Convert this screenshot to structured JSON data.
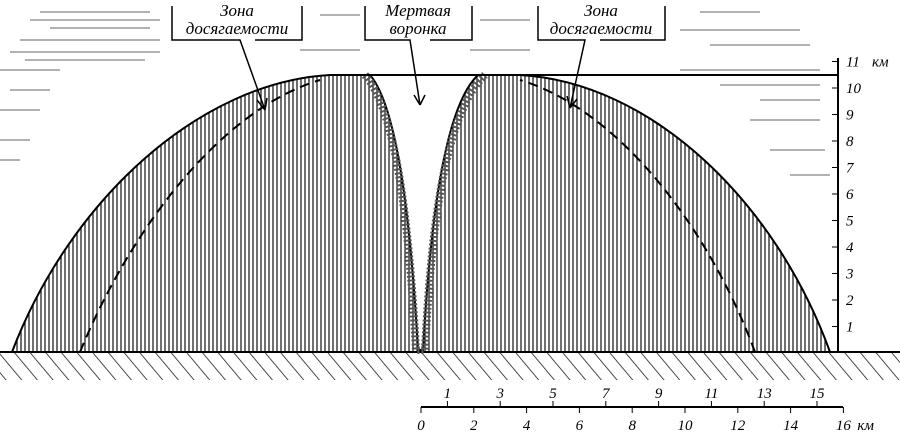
{
  "labels": [
    {
      "lines": [
        "Зона",
        "досягаемости"
      ]
    },
    {
      "lines": [
        "Мертвая",
        "воронка"
      ]
    },
    {
      "lines": [
        "Зона",
        "досягаемости"
      ]
    }
  ],
  "height_scale": {
    "ticks": [
      1,
      2,
      3,
      4,
      5,
      6,
      7,
      8,
      9,
      10,
      11
    ],
    "unit": "км"
  },
  "distance_scale": {
    "upper_ticks": [
      1,
      3,
      5,
      7,
      9,
      11,
      13,
      15
    ],
    "lower_ticks": [
      0,
      2,
      4,
      6,
      8,
      10,
      12,
      14,
      16
    ],
    "unit": "км"
  }
}
